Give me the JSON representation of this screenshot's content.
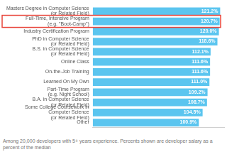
{
  "chart_data": {
    "type": "bar",
    "orientation": "horizontal",
    "categories": [
      [
        "Masters Degree in Computer Science",
        "(or Related Field)"
      ],
      [
        "Full-Time, Intensive Program",
        "(e.g. \"Boot-Camp\")"
      ],
      "Industry Certification Program",
      [
        "PhD in Computer Science",
        "(or Related Field)"
      ],
      [
        "B.S. in Computer Science",
        "(or Related Field)"
      ],
      "Online Class",
      "On-the-Job Training",
      "Learned On My Own",
      [
        "Part-Time Program",
        "(e.g. Night School)"
      ],
      [
        "B.A. in Computer Science",
        "(or Related Field)"
      ],
      [
        "Some College Coursework in",
        "Computer Science",
        "(or Related Field)"
      ],
      "Other"
    ],
    "values": [
      121.2,
      120.7,
      120.0,
      118.6,
      112.1,
      111.6,
      111.6,
      111.0,
      109.2,
      108.7,
      104.5,
      100.9
    ],
    "value_labels": [
      "121.2%",
      "120.7%",
      "120.0%",
      "118.6%",
      "112.1%",
      "111.6%",
      "111.6%",
      "111.0%",
      "109.2%",
      "108.7%",
      "104.5%",
      "100.9%"
    ],
    "color": "#5bc5ef",
    "xlim": [
      0,
      125
    ],
    "tick_labels": "y",
    "grid": false,
    "data_labels": true,
    "annotations": [
      "Among 20,000 developers with 5+ years experience. Percents shown are developer salary as a percent of the median"
    ]
  }
}
